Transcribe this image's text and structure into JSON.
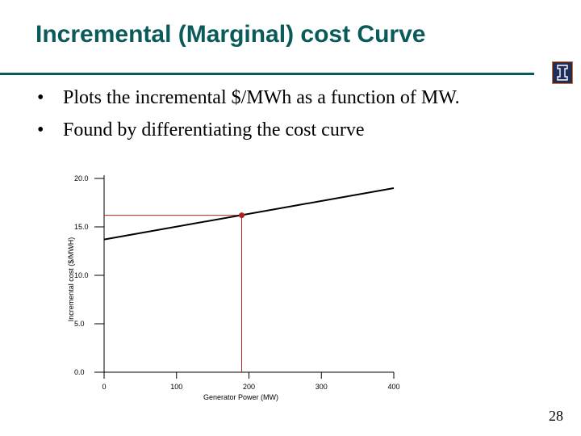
{
  "slide": {
    "title": "Incremental (Marginal) cost Curve",
    "bullets": [
      "Plots the incremental $/MWh as a function of MW.",
      "Found by differentiating the cost curve"
    ],
    "page_number": "28",
    "logo_icon": "illinois-block-i-icon"
  },
  "colors": {
    "title": "#0b5a5a",
    "line": "#000000",
    "marker": "#b22222",
    "logo_bg": "#1f2d5a",
    "logo_border": "#e06a1a"
  },
  "chart_data": {
    "type": "line",
    "title": "",
    "xlabel": "Generator Power (MW)",
    "ylabel": "Incremental cost ($/MWH)",
    "x_ticks": [
      "0",
      "100",
      "200",
      "300",
      "400"
    ],
    "x_tick_values": [
      0,
      100,
      200,
      300,
      400
    ],
    "y_ticks": [
      "0.0",
      "5.0",
      "10.0",
      "15.0",
      "20.0"
    ],
    "y_tick_values": [
      0,
      5,
      10,
      15,
      20
    ],
    "xlim": [
      0,
      400
    ],
    "ylim": [
      0,
      20
    ],
    "grid": false,
    "series": [
      {
        "name": "Incremental cost",
        "x": [
          0,
          400
        ],
        "y": [
          13.7,
          19.0
        ]
      }
    ],
    "highlight_point": {
      "x": 190,
      "y": 16.2
    }
  }
}
